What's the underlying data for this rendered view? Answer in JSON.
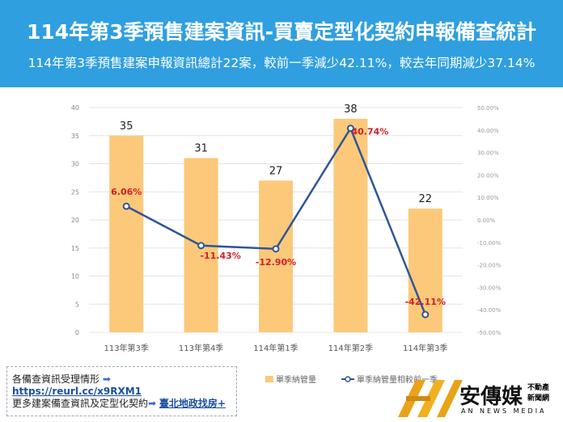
{
  "header": {
    "title": "114年第3季預售建案資訊-買賣定型化契約申報備查統計",
    "subtitle": "114年第3季預售建案申報資訊總計22案，較前一季減少42.11%，較去年同期減少37.14%"
  },
  "chart_data": {
    "type": "bar+line",
    "categories": [
      "113年第3季",
      "113年第4季",
      "114年第1季",
      "114年第2季",
      "114年第3季"
    ],
    "series": [
      {
        "name": "單季納管量",
        "type": "bar",
        "axis": "left",
        "values": [
          35,
          31,
          27,
          38,
          22
        ],
        "color": "#fcc97a"
      },
      {
        "name": "單季納管量相較前一季",
        "type": "line",
        "axis": "right",
        "values": [
          6.06,
          -11.43,
          -12.9,
          40.74,
          -42.11
        ],
        "labels": [
          "6.06%",
          "-11.43%",
          "-12.90%",
          "40.74%",
          "-42.11%"
        ],
        "color": "#2f5597"
      }
    ],
    "ylim_left": [
      0,
      40
    ],
    "yticks_left": [
      "0",
      "5",
      "10",
      "15",
      "20",
      "25",
      "30",
      "35",
      "40"
    ],
    "ylim_right": [
      -50,
      50
    ],
    "yticks_right": [
      "-50.00%",
      "-40.00%",
      "-30.00%",
      "-20.00%",
      "-10.00%",
      "0.00%",
      "10.00%",
      "20.00%",
      "30.00%",
      "40.00%",
      "50.00%"
    ],
    "grid": true,
    "legend": "bottom",
    "label_color": "#d0202a"
  },
  "links": {
    "row1_label": "各備查資訊受理情形",
    "row1_link": "https://reurl.cc/x9RXM1",
    "row2_label": "更多建案備查資訊及定型化契約",
    "row2_link": "臺北地政找房+"
  },
  "logo": {
    "name": "安傳媒",
    "tag1": "不動產",
    "tag2": "新聞網",
    "en": "AN NEWS MEDIA"
  }
}
